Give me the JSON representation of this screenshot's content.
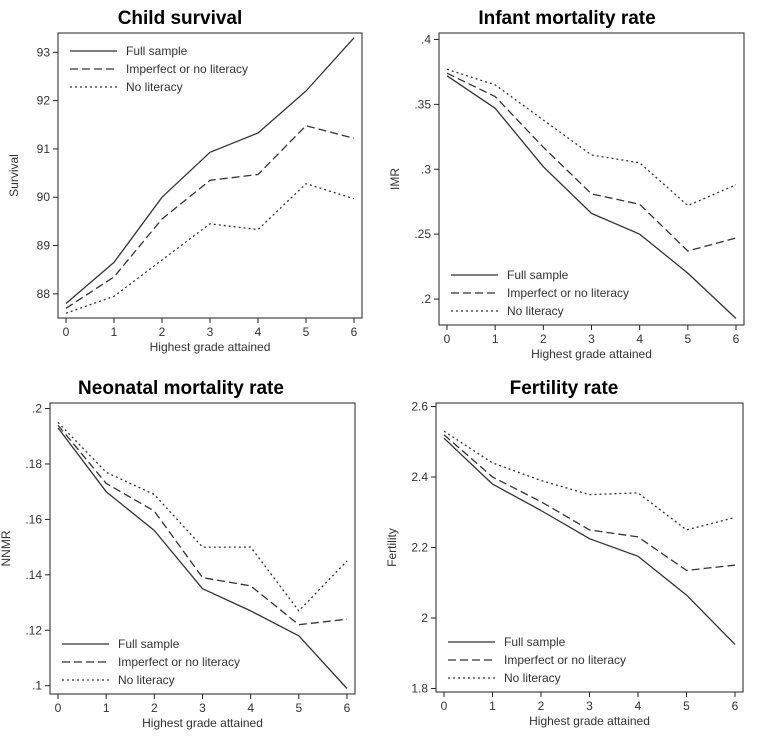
{
  "chart_data": [
    {
      "type": "line",
      "title": "Child survival",
      "xlabel": "Highest grade attained",
      "ylabel": "Survival",
      "x": [
        0,
        1,
        2,
        3,
        4,
        5,
        6
      ],
      "xticks": [
        "0",
        "1",
        "2",
        "3",
        "4",
        "5",
        "6"
      ],
      "ylim": [
        87.5,
        93.4
      ],
      "yticks": [
        88,
        89,
        90,
        91,
        92,
        93
      ],
      "ytick_labels": [
        "88",
        "89",
        "90",
        "91",
        "92",
        "93"
      ],
      "legend_position": "top-left",
      "series": [
        {
          "name": "Full sample",
          "style": "solid",
          "values": [
            87.8,
            88.65,
            90.0,
            90.93,
            91.33,
            92.2,
            93.3
          ]
        },
        {
          "name": "Imperfect or no literacy",
          "style": "dashed",
          "values": [
            87.7,
            88.35,
            89.55,
            90.35,
            90.47,
            91.48,
            91.22
          ]
        },
        {
          "name": "No literacy",
          "style": "dotted",
          "values": [
            87.6,
            87.95,
            88.7,
            89.45,
            89.33,
            90.28,
            89.97
          ]
        }
      ]
    },
    {
      "type": "line",
      "title": "Infant mortality rate",
      "xlabel": "Highest grade attained",
      "ylabel": "IMR",
      "x": [
        0,
        1,
        2,
        3,
        4,
        5,
        6
      ],
      "xticks": [
        "0",
        "1",
        "2",
        "3",
        "4",
        "5",
        "6"
      ],
      "ylim": [
        0.18,
        0.405
      ],
      "yticks": [
        0.2,
        0.25,
        0.3,
        0.35,
        0.4
      ],
      "ytick_labels": [
        ".2",
        ".25",
        ".3",
        ".35",
        ".4"
      ],
      "legend_position": "bottom-left",
      "series": [
        {
          "name": "Full sample",
          "style": "solid",
          "values": [
            0.372,
            0.347,
            0.302,
            0.266,
            0.25,
            0.22,
            0.185
          ]
        },
        {
          "name": "Imperfect or no literacy",
          "style": "dashed",
          "values": [
            0.374,
            0.356,
            0.317,
            0.281,
            0.273,
            0.237,
            0.247
          ]
        },
        {
          "name": "No literacy",
          "style": "dotted",
          "values": [
            0.377,
            0.365,
            0.338,
            0.311,
            0.305,
            0.272,
            0.288
          ]
        }
      ]
    },
    {
      "type": "line",
      "title": "Neonatal mortality rate",
      "xlabel": "Highest grade attained",
      "ylabel": "NNMR",
      "x": [
        0,
        1,
        2,
        3,
        4,
        5,
        6
      ],
      "xticks": [
        "0",
        "1",
        "2",
        "3",
        "4",
        "5",
        "6"
      ],
      "ylim": [
        0.097,
        0.202
      ],
      "yticks": [
        0.1,
        0.12,
        0.14,
        0.16,
        0.18,
        0.2
      ],
      "ytick_labels": [
        ".1",
        ".12",
        ".14",
        ".16",
        ".18",
        ".2"
      ],
      "legend_position": "bottom-left",
      "series": [
        {
          "name": "Full sample",
          "style": "solid",
          "values": [
            0.193,
            0.17,
            0.156,
            0.135,
            0.127,
            0.118,
            0.099
          ]
        },
        {
          "name": "Imperfect or no literacy",
          "style": "dashed",
          "values": [
            0.194,
            0.173,
            0.163,
            0.139,
            0.136,
            0.122,
            0.124
          ]
        },
        {
          "name": "No literacy",
          "style": "dotted",
          "values": [
            0.195,
            0.177,
            0.169,
            0.15,
            0.15,
            0.127,
            0.145
          ]
        }
      ]
    },
    {
      "type": "line",
      "title": "Fertility rate",
      "xlabel": "Highest grade attained",
      "ylabel": "Fertility",
      "x": [
        0,
        1,
        2,
        3,
        4,
        5,
        6
      ],
      "xticks": [
        "0",
        "1",
        "2",
        "3",
        "4",
        "5",
        "6"
      ],
      "ylim": [
        1.79,
        2.61
      ],
      "yticks": [
        1.8,
        2.0,
        2.2,
        2.4,
        2.6
      ],
      "ytick_labels": [
        "1.8",
        "2",
        "2.2",
        "2.4",
        "2.6"
      ],
      "legend_position": "bottom-left",
      "series": [
        {
          "name": "Full sample",
          "style": "solid",
          "values": [
            2.51,
            2.38,
            2.305,
            2.225,
            2.175,
            2.065,
            1.925
          ]
        },
        {
          "name": "Imperfect or no literacy",
          "style": "dashed",
          "values": [
            2.52,
            2.4,
            2.33,
            2.25,
            2.23,
            2.135,
            2.15
          ]
        },
        {
          "name": "No literacy",
          "style": "dotted",
          "values": [
            2.53,
            2.44,
            2.39,
            2.35,
            2.355,
            2.25,
            2.285
          ]
        }
      ]
    }
  ]
}
